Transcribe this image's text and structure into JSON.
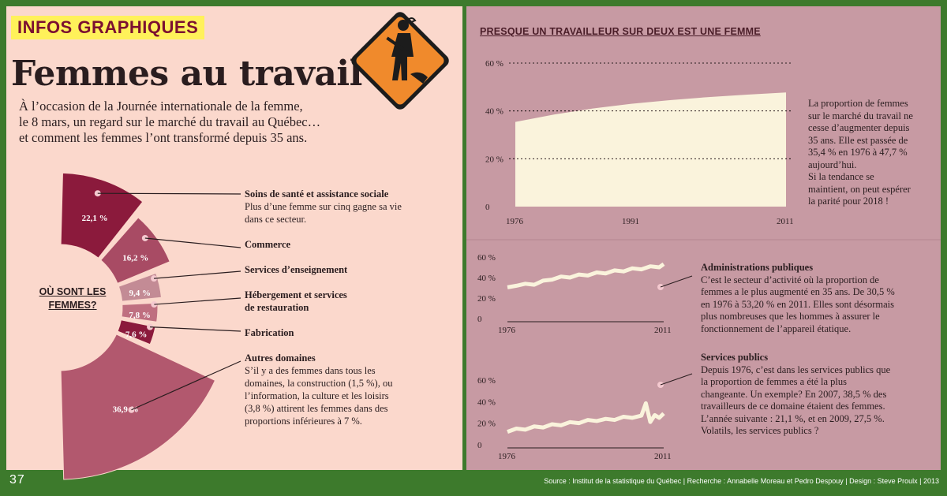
{
  "header": {
    "tag": "INFOS GRAPHIQUES",
    "title": "Femmes au travail",
    "intro": [
      "À l’occasion de la Journée internationale de la femme,",
      "le 8 mars, un regard sur le marché du travail au Québec…",
      "et comment les femmes l’ont transformé depuis 35 ans."
    ]
  },
  "pie": {
    "center_label": "OÙ SONT LES FEMMES?",
    "segments": [
      {
        "value_label": "22,1 %",
        "value": 22.1,
        "heading": "Soins de santé et assistance sociale",
        "desc": [
          "Plus d’une femme sur cinq gagne sa vie",
          "dans ce secteur."
        ],
        "color": "#8b1a3c"
      },
      {
        "value_label": "16,2 %",
        "value": 16.2,
        "heading": "Commerce",
        "desc": [],
        "color": "#a84b64"
      },
      {
        "value_label": "9,4 %",
        "value": 9.4,
        "heading": "Services d’enseignement",
        "desc": [],
        "color": "#c38b95"
      },
      {
        "value_label": "7,8 %",
        "value": 7.8,
        "heading": "Hébergement et services de restauration",
        "heading_lines": [
          "Hébergement et services",
          "de restauration"
        ],
        "desc": [],
        "color": "#bf6f80"
      },
      {
        "value_label": "7,6 %",
        "value": 7.6,
        "heading": "Fabrication",
        "desc": [],
        "color": "#8b1a3c"
      },
      {
        "value_label": "36,9 %",
        "value": 36.9,
        "heading": "Autres domaines",
        "desc": [
          "S’il y a des femmes dans tous les",
          "domaines, la construction (1,5 %), ou",
          "l’information, la culture et les loisirs",
          "(3,8 %) attirent les femmes dans des",
          "proportions inférieures à 7 %."
        ],
        "color": "#b2586e"
      }
    ]
  },
  "chart_data": [
    {
      "type": "area",
      "title": "PRESQUE UN TRAVAILLEUR SUR DEUX EST UNE FEMME",
      "x": [
        1976,
        1981,
        1986,
        1991,
        1996,
        2001,
        2006,
        2011
      ],
      "y": [
        35.4,
        38.5,
        41.0,
        43.0,
        44.5,
        45.8,
        46.8,
        47.7
      ],
      "x_ticks": [
        "1976",
        "1991",
        "2011"
      ],
      "y_ticks": [
        "0",
        "20 %",
        "40 %",
        "60 %"
      ],
      "ylim": [
        0,
        60
      ],
      "grid": "dotted",
      "color": "#faf3dc",
      "note": [
        "La proportion de femmes",
        "sur le marché du travail ne",
        "cesse d’augmenter depuis",
        "35 ans. Elle est passée de",
        "35,4 % en 1976 à 47,7 %",
        "aujourd’hui.",
        "Si la tendance se",
        "maintient, on peut espérer",
        "la parité pour 2018 !"
      ]
    },
    {
      "type": "line",
      "x": [
        1976,
        1978,
        1980,
        1982,
        1984,
        1986,
        1988,
        1990,
        1992,
        1994,
        1996,
        1998,
        2000,
        2002,
        2004,
        2006,
        2008,
        2010,
        2011
      ],
      "y": [
        30.5,
        32,
        34,
        33,
        37,
        38,
        41,
        40,
        43,
        42,
        45,
        44,
        47,
        46,
        49,
        48,
        51,
        50,
        53.2
      ],
      "x_ticks": [
        "1976",
        "2011"
      ],
      "y_ticks": [
        "0",
        "20 %",
        "40 %",
        "60 %"
      ],
      "ylim": [
        0,
        60
      ],
      "color": "#faf3dc",
      "heading": "Administrations publiques",
      "note": [
        "C’est le secteur d’activité où la proportion de",
        "femmes a le plus augmenté en 35 ans. De 30,5 %",
        "en 1976 à 53,20 % en 2011. Elles sont désormais",
        "plus nombreuses que les hommes à assurer le",
        "fonctionnement de l’appareil étatique."
      ]
    },
    {
      "type": "line",
      "x": [
        1976,
        1978,
        1980,
        1982,
        1984,
        1986,
        1988,
        1990,
        1992,
        1994,
        1996,
        1998,
        2000,
        2002,
        2004,
        2006,
        2007,
        2008,
        2009,
        2010,
        2011
      ],
      "y": [
        12,
        15,
        14,
        17,
        16,
        19,
        18,
        21,
        20,
        23,
        22,
        24,
        23,
        26,
        25,
        27,
        38.5,
        21.1,
        27.5,
        25,
        29
      ],
      "x_ticks": [
        "1976",
        "2011"
      ],
      "y_ticks": [
        "0",
        "20 %",
        "40 %",
        "60 %"
      ],
      "ylim": [
        0,
        60
      ],
      "color": "#faf3dc",
      "heading": "Services publics",
      "note": [
        "Depuis 1976, c’est dans les services publics que",
        "la proportion de femmes a été la plus",
        "changeante. Un exemple? En 2007, 38,5 % des",
        "travailleurs de ce domaine étaient des femmes.",
        "L’année suivante : 21,1 %, et en 2009, 27,5 %.",
        "Volatils, les services publics ?"
      ]
    }
  ],
  "footer": {
    "page": "37",
    "credits": "Source : Institut de la statistique du Québec | Recherche : Annabelle Moreau et Pedro Despouy | Design : Steve Proulx | 2013"
  },
  "colors": {
    "frame": "#3d7a2c",
    "left_bg": "#fbd8cc",
    "right_bg": "#c79aa3",
    "sign": "#f08a2c"
  }
}
